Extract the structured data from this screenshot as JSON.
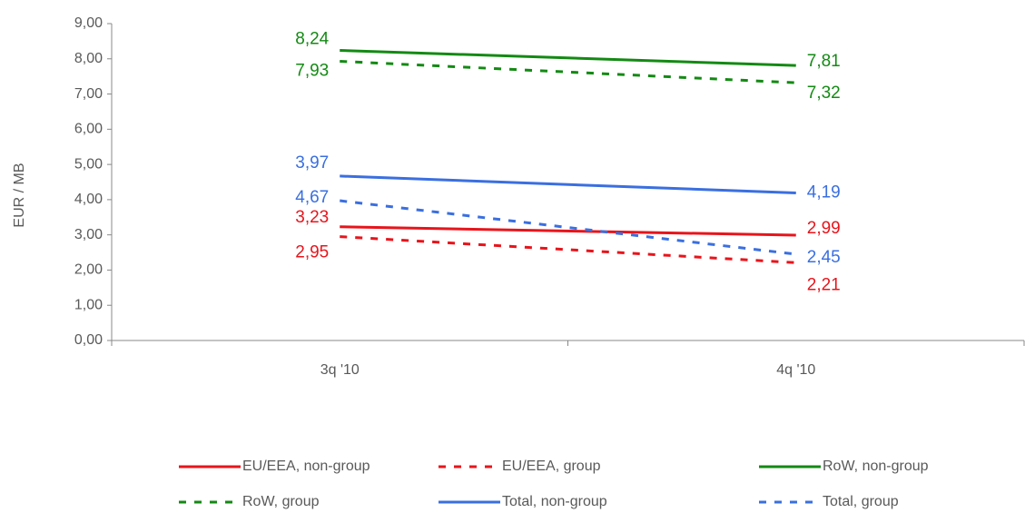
{
  "chart_data": {
    "type": "line",
    "y_axis_label": "EUR / MB",
    "categories": [
      "3q '10",
      "4q '10"
    ],
    "ylim": [
      0,
      9
    ],
    "yticks": [
      {
        "value": 0,
        "label": "0,00"
      },
      {
        "value": 1,
        "label": "1,00"
      },
      {
        "value": 2,
        "label": "2,00"
      },
      {
        "value": 3,
        "label": "3,00"
      },
      {
        "value": 4,
        "label": "4,00"
      },
      {
        "value": 5,
        "label": "5,00"
      },
      {
        "value": 6,
        "label": "6,00"
      },
      {
        "value": 7,
        "label": "7,00"
      },
      {
        "value": 8,
        "label": "8,00"
      },
      {
        "value": 9,
        "label": "9,00"
      }
    ],
    "series": [
      {
        "name": "EU/EEA, non-group",
        "color": "#e8141b",
        "dashed": false,
        "values": [
          3.23,
          2.99
        ],
        "value_labels": [
          "3,23",
          "2,99"
        ]
      },
      {
        "name": "EU/EEA, group",
        "color": "#e8141b",
        "dashed": true,
        "values": [
          2.95,
          2.21
        ],
        "value_labels": [
          "2,95",
          "2,21"
        ]
      },
      {
        "name": "RoW, non-group",
        "color": "#138a13",
        "dashed": false,
        "values": [
          8.24,
          7.81
        ],
        "value_labels": [
          "8,24",
          "7,81"
        ]
      },
      {
        "name": "RoW, group",
        "color": "#138a13",
        "dashed": true,
        "values": [
          7.93,
          7.32
        ],
        "value_labels": [
          "7,93",
          "7,32"
        ]
      },
      {
        "name": "Total, non-group",
        "color": "#3a6fe0",
        "dashed": false,
        "values": [
          4.67,
          4.19
        ],
        "value_labels": [
          "4,67",
          "4,19"
        ]
      },
      {
        "name": "Total, group",
        "color": "#3a6fe0",
        "dashed": true,
        "values": [
          3.97,
          2.45
        ],
        "value_labels": [
          "3,97",
          "2,45"
        ]
      }
    ]
  }
}
